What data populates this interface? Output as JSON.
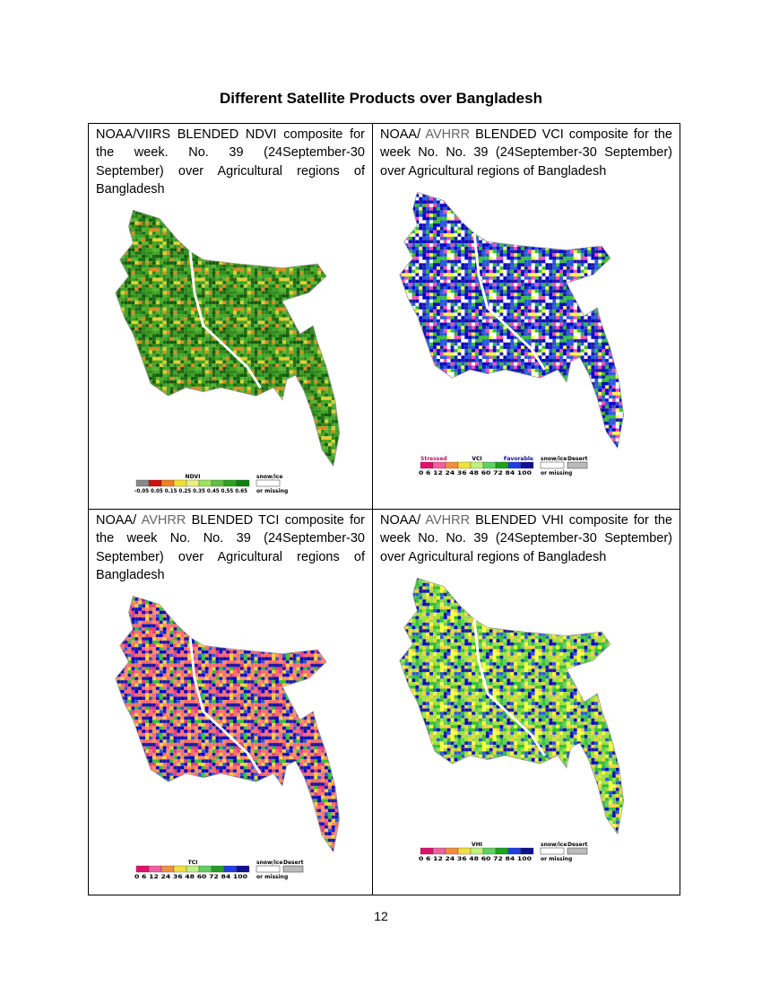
{
  "title": "Different Satellite Products over Bangladesh",
  "cells": [
    {
      "caption": [
        {
          "text": "NOAA/VIIRS BLENDED NDVI composite for the week. No. 39 (24September-30 September) over Agricultural regions of Bangladesh"
        }
      ],
      "legend": {
        "title": "NDVI",
        "ticks": "-0.05 0.05 0.15 0.25 0.35 0.45 0.55 0.65",
        "snow": "snow/ice",
        "missing": "or missing"
      }
    },
    {
      "caption": [
        {
          "text": "NOAA/ "
        },
        {
          "text": "AVHRR",
          "color": "#666666"
        },
        {
          "text": " BLENDED VCI composite for the week No. No. 39 (24September-30 September) over Agricultural regions of Bangladesh"
        }
      ],
      "legend": {
        "left": "Stressed",
        "title": "VCI",
        "right": "Favorable",
        "ticks": "0 6 12 24 36 48 60 72 84 100",
        "snow": "snow/ice",
        "missing": "or missing",
        "desert": "Desert"
      }
    },
    {
      "caption": [
        {
          "text": "NOAA/ "
        },
        {
          "text": "AVHRR",
          "color": "#666666"
        },
        {
          "text": " BLENDED TCI composite for the week No. No. 39 (24September-30 September) over Agricultural regions of Bangladesh"
        }
      ],
      "legend": {
        "title": "TCI",
        "ticks": "0 6 12 24 36 48 60 72 84 100",
        "snow": "snow/ice",
        "missing": "or missing",
        "desert": "Desert"
      }
    },
    {
      "caption": [
        {
          "text": "NOAA/ "
        },
        {
          "text": "AVHRR",
          "color": "#666666"
        },
        {
          "text": " BLENDED VHI composite for the week No. No. 39 (24September-30 September) over Agricultural regions of Bangladesh"
        }
      ],
      "legend": {
        "title": "VHI",
        "ticks": "0 6 12 24 36 48 60 72 84 100",
        "snow": "snow/ice",
        "missing": "or missing",
        "desert": "Desert"
      }
    }
  ],
  "page_number": "12"
}
